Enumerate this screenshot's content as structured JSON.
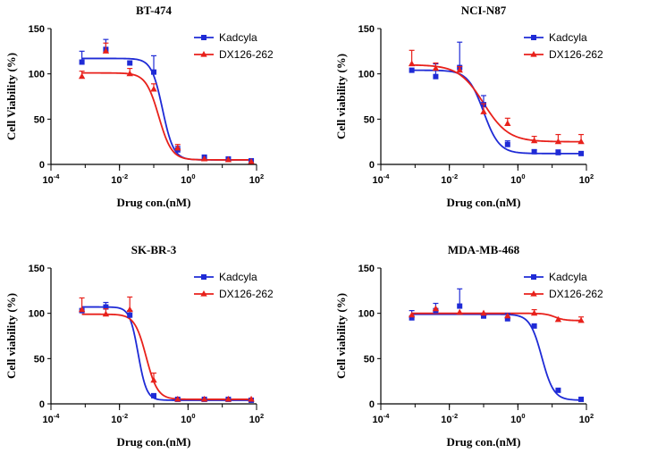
{
  "chart_data": [
    {
      "type": "line",
      "title": "BT-474",
      "xlabel": "Drug con.(nM)",
      "ylabel": "Cell Viability (%)",
      "xscale": "log",
      "xlim": [
        0.0001,
        100
      ],
      "ylim": [
        0,
        150
      ],
      "xticks": [
        0.0001,
        0.01,
        1,
        100
      ],
      "yticks": [
        0,
        50,
        100,
        150
      ],
      "legend": "top-right",
      "x": [
        0.0008,
        0.004,
        0.02,
        0.1,
        0.5,
        3,
        15,
        70
      ],
      "series": [
        {
          "name": "Kadcyla",
          "color": "#1f2bd6",
          "marker": "square",
          "values": [
            113,
            127,
            112,
            102,
            16,
            8,
            6,
            4
          ],
          "errors": [
            12,
            11,
            0,
            18,
            4,
            0,
            0,
            0
          ],
          "fit": {
            "top": 117,
            "bottom": 5,
            "ec50": 0.18,
            "hill": 2.7
          }
        },
        {
          "name": "DX126-262",
          "color": "#e8211b",
          "marker": "triangle",
          "values": [
            97,
            125,
            100,
            83,
            18,
            6,
            5,
            3
          ],
          "errors": [
            6,
            9,
            6,
            6,
            4,
            0,
            0,
            0
          ],
          "fit": {
            "top": 101,
            "bottom": 5,
            "ec50": 0.14,
            "hill": 2.3
          }
        }
      ]
    },
    {
      "type": "line",
      "title": "NCI-N87",
      "xlabel": "Drug con.(nM)",
      "ylabel": "Cell viability (%)",
      "xscale": "log",
      "xlim": [
        0.0001,
        100
      ],
      "ylim": [
        0,
        150
      ],
      "xticks": [
        0.0001,
        0.01,
        1,
        100
      ],
      "yticks": [
        0,
        50,
        100,
        150
      ],
      "legend": "top-right",
      "x": [
        0.0008,
        0.004,
        0.02,
        0.1,
        0.5,
        3,
        15,
        70
      ],
      "series": [
        {
          "name": "Kadcyla",
          "color": "#1f2bd6",
          "marker": "square",
          "values": [
            104,
            97,
            107,
            66,
            22,
            14,
            13,
            12
          ],
          "errors": [
            0,
            14,
            28,
            10,
            4,
            2,
            3,
            2
          ],
          "fit": {
            "top": 104,
            "bottom": 12,
            "ec50": 0.1,
            "hill": 1.9
          }
        },
        {
          "name": "DX126-262",
          "color": "#e8211b",
          "marker": "triangle",
          "values": [
            111,
            106,
            104,
            58,
            45,
            26,
            25,
            25
          ],
          "errors": [
            15,
            6,
            4,
            9,
            6,
            5,
            8,
            8
          ],
          "fit": {
            "top": 110,
            "bottom": 25,
            "ec50": 0.1,
            "hill": 1.2
          }
        }
      ]
    },
    {
      "type": "line",
      "title": "SK-BR-3",
      "xlabel": "Drug con.(nM)",
      "ylabel": "Cell viability (%)",
      "xscale": "log",
      "xlim": [
        0.0001,
        100
      ],
      "ylim": [
        0,
        150
      ],
      "xticks": [
        0.0001,
        0.01,
        1,
        100
      ],
      "yticks": [
        0,
        50,
        100,
        150
      ],
      "legend": "top-right",
      "x": [
        0.0008,
        0.004,
        0.02,
        0.1,
        0.5,
        3,
        15,
        70
      ],
      "series": [
        {
          "name": "Kadcyla",
          "color": "#1f2bd6",
          "marker": "square",
          "values": [
            103,
            107,
            98,
            9,
            5,
            5,
            5,
            4
          ],
          "errors": [
            0,
            5,
            5,
            0,
            0,
            0,
            0,
            0
          ],
          "fit": {
            "top": 107,
            "bottom": 4,
            "ec50": 0.035,
            "hill": 3.5
          }
        },
        {
          "name": "DX126-262",
          "color": "#e8211b",
          "marker": "triangle",
          "values": [
            104,
            99,
            104,
            26,
            5,
            5,
            5,
            5
          ],
          "errors": [
            13,
            6,
            14,
            8,
            0,
            0,
            0,
            0
          ],
          "fit": {
            "top": 99,
            "bottom": 5,
            "ec50": 0.06,
            "hill": 2.6
          }
        }
      ]
    },
    {
      "type": "line",
      "title": "MDA-MB-468",
      "xlabel": "Drug con.(nM)",
      "ylabel": "Cell viability (%)",
      "xscale": "log",
      "xlim": [
        0.0001,
        100
      ],
      "ylim": [
        0,
        150
      ],
      "xticks": [
        0.0001,
        0.01,
        1,
        100
      ],
      "yticks": [
        0,
        50,
        100,
        150
      ],
      "legend": "top-right",
      "x": [
        0.0008,
        0.004,
        0.02,
        0.1,
        0.5,
        3,
        15,
        70
      ],
      "series": [
        {
          "name": "Kadcyla",
          "color": "#1f2bd6",
          "marker": "square",
          "values": [
            95,
            103,
            108,
            97,
            94,
            86,
            15,
            5
          ],
          "errors": [
            8,
            8,
            19,
            0,
            6,
            0,
            0,
            0
          ],
          "fit": {
            "top": 99,
            "bottom": 4,
            "ec50": 5,
            "hill": 2.5
          }
        },
        {
          "name": "DX126-262",
          "color": "#e8211b",
          "marker": "triangle",
          "values": [
            98,
            105,
            101,
            100,
            97,
            100,
            93,
            92
          ],
          "errors": [
            0,
            0,
            0,
            0,
            0,
            4,
            0,
            4
          ],
          "fit": {
            "top": 100,
            "bottom": 92,
            "ec50": 12,
            "hill": 3
          }
        }
      ]
    }
  ]
}
